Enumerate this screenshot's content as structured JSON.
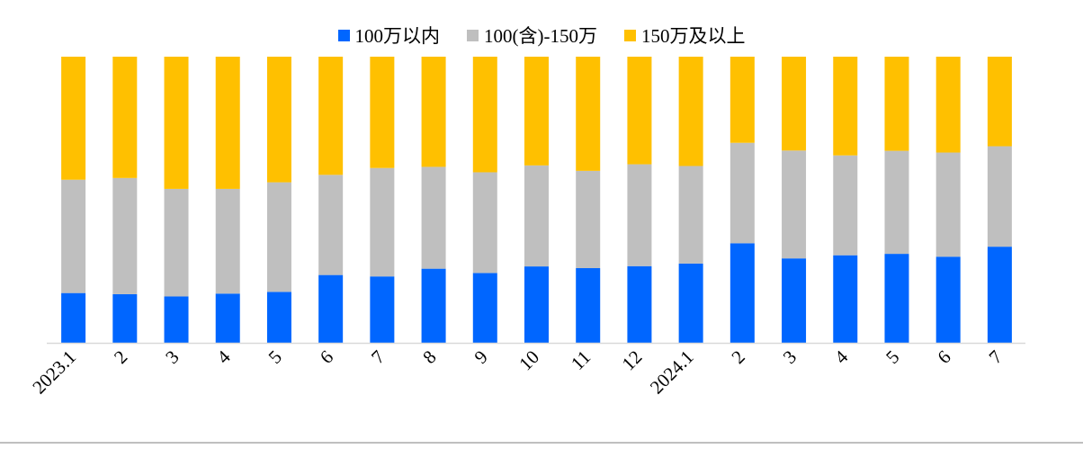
{
  "chart_data": {
    "type": "bar",
    "stacked": "percent",
    "title": "",
    "xlabel": "",
    "ylabel": "",
    "ylim": [
      0,
      100
    ],
    "grid": false,
    "legend_position": "top-center",
    "categories": [
      "2023.1",
      "2",
      "3",
      "4",
      "5",
      "6",
      "7",
      "8",
      "9",
      "10",
      "11",
      "12",
      "2024.1",
      "2",
      "3",
      "4",
      "5",
      "6",
      "7"
    ],
    "series": [
      {
        "name": "100万以内",
        "color": "#0066FF",
        "values": [
          17.4,
          17.0,
          16.2,
          17.2,
          17.8,
          23.7,
          23.2,
          25.9,
          24.4,
          26.7,
          26.1,
          26.8,
          27.7,
          34.8,
          29.5,
          30.6,
          31.1,
          30.1,
          33.6
        ]
      },
      {
        "name": "100(含)-150万",
        "color": "#BFBFBF",
        "values": [
          39.6,
          40.6,
          37.6,
          36.6,
          38.3,
          35.0,
          37.9,
          35.6,
          35.2,
          35.3,
          34.0,
          35.6,
          34.1,
          35.1,
          37.7,
          34.9,
          36.0,
          36.4,
          35.1
        ]
      },
      {
        "name": "150万及以上",
        "color": "#FFC000",
        "values": [
          43.0,
          42.4,
          46.2,
          46.2,
          43.9,
          41.3,
          38.9,
          38.5,
          40.4,
          38.0,
          39.9,
          37.6,
          38.2,
          30.1,
          32.8,
          34.5,
          32.9,
          33.5,
          31.3
        ]
      }
    ]
  }
}
